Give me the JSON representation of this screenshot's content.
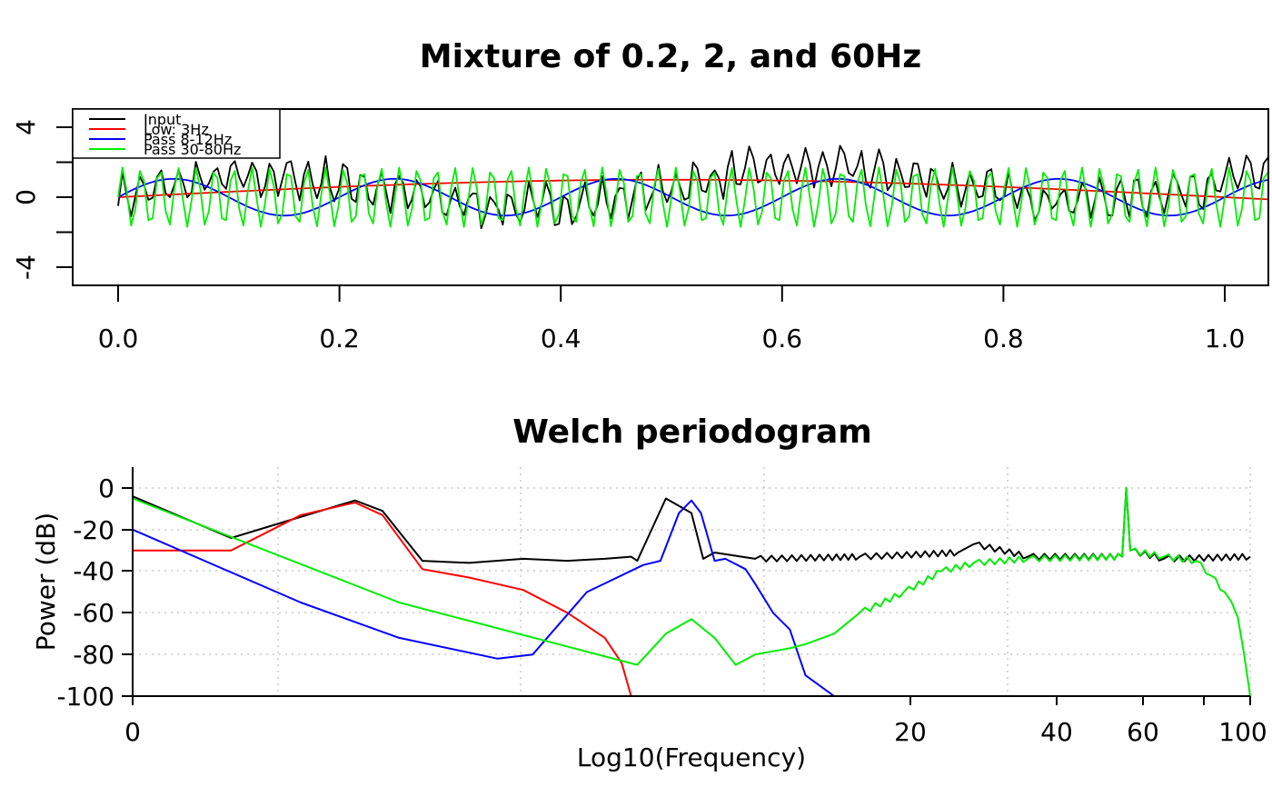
{
  "chart_data": [
    {
      "type": "line",
      "title": "Mixture of 0.2, 2, and 60Hz",
      "xlabel": "",
      "ylabel": "",
      "xlim": [
        0,
        1.0
      ],
      "ylim": [
        -5,
        5
      ],
      "x_ticks": [
        "0.0",
        "0.2",
        "0.4",
        "0.6",
        "0.8",
        "1.0"
      ],
      "y_ticks": [
        "4",
        "0",
        "-4"
      ],
      "legend": "top-left",
      "sample_rate_hz": 256,
      "series": [
        {
          "name": "Input",
          "color": "#000000",
          "components": [
            {
              "freq_hz": 0.2,
              "amp": 1
            },
            {
              "freq_hz": 2,
              "amp": 1
            },
            {
              "freq_hz": 60,
              "amp": 1
            },
            {
              "noise_amp": 0.5
            }
          ]
        },
        {
          "name": "Low: 3Hz",
          "color": "#ff0000",
          "components": [
            {
              "freq_hz": 0.5,
              "amp": 1.0
            }
          ]
        },
        {
          "name": "Pass 8-12Hz",
          "color": "#0000ff",
          "components": [
            {
              "freq_hz": 5,
              "amp": 1.05
            }
          ]
        },
        {
          "name": "Pass 30-80Hz",
          "color": "#00ee00",
          "components": [
            {
              "freq_hz": 60,
              "amp": 1.7
            }
          ]
        }
      ]
    },
    {
      "type": "line",
      "title": "Welch periodogram",
      "xlabel": "Log10(Frequency)",
      "ylabel": "Power (dB)",
      "x_scale": "log",
      "xlim": [
        1,
        100
      ],
      "ylim": [
        -100,
        5
      ],
      "x_ticks": [
        "0",
        "20",
        "40",
        "60",
        "100"
      ],
      "y_ticks": [
        "0",
        "-20",
        "-40",
        "-60",
        "-80",
        "-100"
      ],
      "grid": true,
      "series": [
        {
          "name": "Input",
          "color": "#000000",
          "points": [
            [
              1,
              -4
            ],
            [
              1.5,
              -24
            ],
            [
              2.5,
              -6
            ],
            [
              2.8,
              -11
            ],
            [
              3.3,
              -35
            ],
            [
              4,
              -36
            ],
            [
              5,
              -34
            ],
            [
              6,
              -35
            ],
            [
              7,
              -34
            ],
            [
              7.8,
              -33
            ],
            [
              8,
              -35
            ],
            [
              9,
              -5
            ],
            [
              10,
              -12
            ],
            [
              10.5,
              -34
            ],
            [
              11,
              -31
            ],
            [
              13,
              -34
            ],
            [
              20,
              -33
            ],
            [
              30,
              -31
            ],
            [
              32,
              -27
            ],
            [
              40,
              -33
            ],
            [
              59,
              -33
            ],
            [
              60,
              0
            ],
            [
              61,
              -30
            ],
            [
              70,
              -34
            ],
            [
              100,
              -33
            ]
          ]
        },
        {
          "name": "Low: 3Hz",
          "color": "#ff0000",
          "points": [
            [
              1,
              -30
            ],
            [
              1.5,
              -30
            ],
            [
              2,
              -13
            ],
            [
              2.5,
              -7
            ],
            [
              2.8,
              -13
            ],
            [
              3.3,
              -39
            ],
            [
              4,
              -43
            ],
            [
              5,
              -49
            ],
            [
              6,
              -60
            ],
            [
              7,
              -72
            ],
            [
              7.5,
              -84
            ],
            [
              7.8,
              -100
            ]
          ]
        },
        {
          "name": "Pass 8-12Hz",
          "color": "#0000ff",
          "points": [
            [
              1,
              -20
            ],
            [
              2,
              -55
            ],
            [
              3,
              -72
            ],
            [
              4.5,
              -82
            ],
            [
              5.2,
              -80
            ],
            [
              6.5,
              -50
            ],
            [
              8.2,
              -37
            ],
            [
              8.8,
              -35
            ],
            [
              9.5,
              -12
            ],
            [
              10,
              -6
            ],
            [
              10.4,
              -12
            ],
            [
              11,
              -35
            ],
            [
              11.5,
              -34
            ],
            [
              12.5,
              -39
            ],
            [
              13,
              -46
            ],
            [
              14,
              -60
            ],
            [
              15,
              -68
            ],
            [
              16,
              -90
            ],
            [
              18,
              -100
            ]
          ]
        },
        {
          "name": "Pass 30-80Hz",
          "color": "#00ee00",
          "points": [
            [
              1,
              -5
            ],
            [
              3,
              -55
            ],
            [
              8,
              -85
            ],
            [
              9,
              -70
            ],
            [
              10,
              -63
            ],
            [
              11,
              -72
            ],
            [
              12,
              -85
            ],
            [
              13,
              -80
            ],
            [
              15,
              -77
            ],
            [
              16,
              -75
            ],
            [
              18,
              -70
            ],
            [
              20,
              -60
            ],
            [
              24,
              -50
            ],
            [
              28,
              -40
            ],
            [
              32,
              -36
            ],
            [
              40,
              -34
            ],
            [
              59,
              -33
            ],
            [
              60,
              0
            ],
            [
              61,
              -30
            ],
            [
              70,
              -33
            ],
            [
              80,
              -35
            ],
            [
              85,
              -42
            ],
            [
              90,
              -50
            ],
            [
              95,
              -62
            ],
            [
              100,
              -100
            ]
          ]
        }
      ]
    }
  ]
}
